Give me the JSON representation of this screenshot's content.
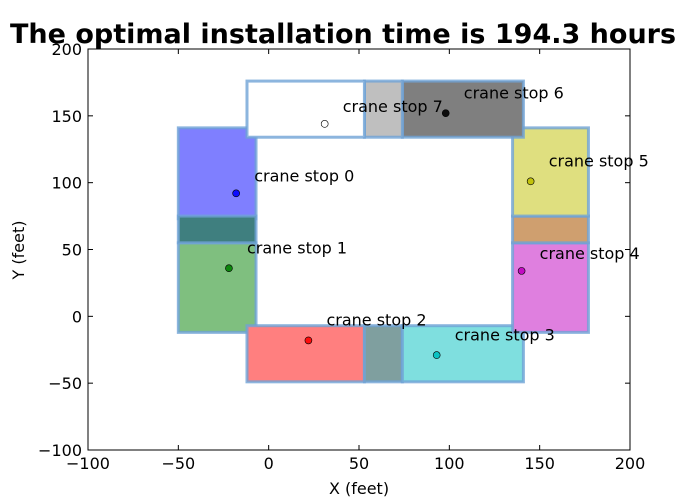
{
  "chart_data": {
    "type": "scatter",
    "title": "The optimal installation time is  194.3 hours",
    "xlabel": "X (feet)",
    "ylabel": "Y (feet)",
    "xlim": [
      -100,
      200
    ],
    "ylim": [
      -100,
      200
    ],
    "xticks": [
      -100,
      -50,
      0,
      50,
      100,
      150,
      200
    ],
    "yticks": [
      -100,
      -50,
      0,
      50,
      100,
      150,
      200
    ],
    "xtick_labels": [
      "−100",
      "−50",
      "0",
      "50",
      "100",
      "150",
      "200"
    ],
    "ytick_labels": [
      "−100",
      "−50",
      "0",
      "50",
      "100",
      "150",
      "200"
    ],
    "grid": false,
    "regions": [
      {
        "x": [
          -50,
          -7
        ],
        "y": [
          73,
          141
        ],
        "color": "#7f7fff"
      },
      {
        "x": [
          -50,
          -7
        ],
        "y": [
          -12,
          55
        ],
        "color": "#7fbf7f"
      },
      {
        "x": [
          -50,
          -7
        ],
        "y": [
          55,
          75
        ],
        "color": "#3f7f7f"
      },
      {
        "x": [
          -12,
          53
        ],
        "y": [
          -49,
          -7
        ],
        "color": "#ff7f7f"
      },
      {
        "x": [
          53,
          74
        ],
        "y": [
          -49,
          -7
        ],
        "color": "#7f9f9f"
      },
      {
        "x": [
          74,
          141
        ],
        "y": [
          -49,
          -7
        ],
        "color": "#7fdfdf"
      },
      {
        "x": [
          135,
          177
        ],
        "y": [
          -12,
          55
        ],
        "color": "#df7fdf"
      },
      {
        "x": [
          135,
          177
        ],
        "y": [
          55,
          75
        ],
        "color": "#cf9f6f"
      },
      {
        "x": [
          135,
          177
        ],
        "y": [
          75,
          141
        ],
        "color": "#dfdf7f"
      },
      {
        "x": [
          74,
          141
        ],
        "y": [
          134,
          176
        ],
        "color": "#7f7f7f"
      },
      {
        "x": [
          53,
          74
        ],
        "y": [
          134,
          176
        ],
        "color": "#bfbfbf"
      },
      {
        "x": [
          -12,
          53
        ],
        "y": [
          134,
          176
        ],
        "color": "#ffffff"
      }
    ],
    "region_edge_color": "#6fa3d6",
    "series": [
      {
        "name": "crane stop 0",
        "x": -18,
        "y": 92,
        "color": "#0000ff",
        "label_x": -8,
        "label_y": 101
      },
      {
        "name": "crane stop 1",
        "x": -22,
        "y": 36,
        "color": "#008000",
        "label_x": -12,
        "label_y": 47
      },
      {
        "name": "crane stop 2",
        "x": 22,
        "y": -18,
        "color": "#ff0000",
        "label_x": 32,
        "label_y": -7
      },
      {
        "name": "crane stop 3",
        "x": 93,
        "y": -29,
        "color": "#00bfbf",
        "label_x": 103,
        "label_y": -18
      },
      {
        "name": "crane stop 4",
        "x": 140,
        "y": 34,
        "color": "#bf00bf",
        "label_x": 150,
        "label_y": 43
      },
      {
        "name": "crane stop 5",
        "x": 145,
        "y": 101,
        "color": "#bfbf00",
        "label_x": 155,
        "label_y": 112
      },
      {
        "name": "crane stop 6",
        "x": 98,
        "y": 152,
        "color": "#000000",
        "label_x": 108,
        "label_y": 163
      },
      {
        "name": "crane stop 7",
        "x": 31,
        "y": 144,
        "color": "#ffffff",
        "label_x": 41,
        "label_y": 153
      }
    ]
  }
}
